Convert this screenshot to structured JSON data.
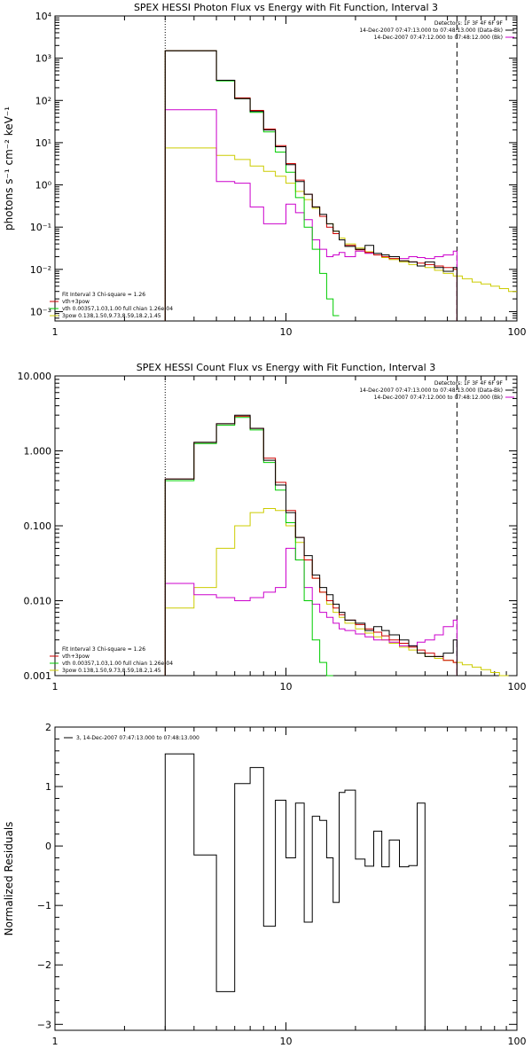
{
  "charts": [
    {
      "id": "photon",
      "type": "line",
      "title": "SPEX HESSI Photon Flux vs Energy with Fit Function, Interval 3",
      "ylabel": "photons s⁻¹ cm⁻² keV⁻¹",
      "xlabel": "",
      "xscale": "log",
      "yscale": "log",
      "xlim": [
        1,
        100
      ],
      "ylim": [
        0.0006,
        10000
      ],
      "x_ticks": [
        1,
        10,
        100
      ],
      "x_tick_labels": [
        "1",
        "10",
        "100"
      ],
      "y_ticks": [
        0.001,
        0.01,
        0.1,
        1,
        10,
        100,
        1000,
        10000
      ],
      "y_tick_labels": [
        "10⁻³",
        "10⁻²",
        "10⁻¹",
        "10⁰",
        "10¹",
        "10²",
        "10³",
        "10⁴"
      ],
      "vlines": [
        {
          "x": 3,
          "style": "dotted"
        },
        {
          "x": 55,
          "style": "dashed"
        }
      ],
      "legend_top": [
        {
          "text": "Detectors: 1F 3F 4F 6F 9F",
          "color": ""
        },
        {
          "text": "14-Dec-2007 07:47:13.000 to 07:48:13.000 (Data-Bk)",
          "color": "#000000"
        },
        {
          "text": "14-Dec-2007 07:47:12.000 to 07:48:12.000 (Bk)",
          "color": "#cc00cc"
        }
      ],
      "legend_bottom": [
        {
          "text": "Fit Interval 3   Chi-square = 1.26",
          "color": ""
        },
        {
          "text": "vth+3pow",
          "color": "#cc0000"
        },
        {
          "text": "vth 0.00357,1.03,1.00  full chian 1.26e-04",
          "color": "#00cc00"
        },
        {
          "text": "3pow 0.138,1.50,9.73,8.59,18.2,1.45",
          "color": "#cccc00"
        }
      ],
      "series": [
        {
          "name": "Data-Bk",
          "color": "#000000",
          "x": [
            3,
            4,
            5,
            6,
            7,
            8,
            9,
            10,
            11,
            12,
            13,
            14,
            15,
            16,
            17,
            18,
            20,
            22,
            24,
            26,
            28,
            31,
            34,
            37,
            40,
            44,
            48,
            53,
            55
          ],
          "y": [
            1500,
            1500,
            300,
            110,
            55,
            20,
            8,
            3,
            1.2,
            0.6,
            0.3,
            0.2,
            0.12,
            0.08,
            0.05,
            0.035,
            0.03,
            0.037,
            0.024,
            0.022,
            0.02,
            0.016,
            0.015,
            0.012,
            0.015,
            0.011,
            0.009,
            0.011,
            0.0005
          ]
        },
        {
          "name": "vth+3pow",
          "color": "#cc0000",
          "x": [
            3,
            4,
            5,
            6,
            7,
            8,
            9,
            10,
            11,
            12,
            13,
            14,
            15,
            16,
            17,
            18,
            20,
            22,
            24,
            26,
            28,
            31,
            34,
            37,
            40,
            44,
            48,
            53,
            55
          ],
          "y": [
            1500,
            1500,
            300,
            115,
            58,
            21,
            8.5,
            3.2,
            1.3,
            0.6,
            0.3,
            0.18,
            0.1,
            0.07,
            0.05,
            0.037,
            0.029,
            0.025,
            0.022,
            0.02,
            0.018,
            0.016,
            0.015,
            0.014,
            0.013,
            0.012,
            0.011,
            0.01,
            0.0005
          ]
        },
        {
          "name": "vth",
          "color": "#00cc00",
          "x": [
            3,
            4,
            5,
            6,
            7,
            8,
            9,
            10,
            11,
            12,
            13,
            14,
            15,
            16,
            17
          ],
          "y": [
            1500,
            1500,
            290,
            110,
            52,
            18,
            6,
            2,
            0.5,
            0.1,
            0.03,
            0.008,
            0.002,
            0.0008,
            0.0008
          ]
        },
        {
          "name": "3pow",
          "color": "#cccc00",
          "x": [
            3,
            4,
            5,
            6,
            7,
            8,
            9,
            10,
            11,
            12,
            13,
            14,
            15,
            16,
            17,
            18,
            20,
            22,
            24,
            26,
            28,
            31,
            34,
            37,
            40,
            44,
            48,
            53,
            58,
            64,
            70,
            77,
            84,
            92,
            100
          ],
          "y": [
            7.5,
            7.5,
            5,
            4,
            2.8,
            2.1,
            1.6,
            1.1,
            0.7,
            0.45,
            0.28,
            0.18,
            0.12,
            0.08,
            0.055,
            0.04,
            0.032,
            0.026,
            0.022,
            0.019,
            0.017,
            0.015,
            0.013,
            0.012,
            0.011,
            0.0095,
            0.008,
            0.007,
            0.006,
            0.005,
            0.0045,
            0.004,
            0.0035,
            0.003,
            0.003
          ]
        },
        {
          "name": "Bk",
          "color": "#cc00cc",
          "x": [
            3,
            4,
            5,
            6,
            7,
            8,
            9,
            10,
            11,
            12,
            13,
            14,
            15,
            16,
            17,
            18,
            20,
            22,
            24,
            26,
            28,
            31,
            34,
            37,
            40,
            44,
            48,
            53,
            55
          ],
          "y": [
            60,
            60,
            1.2,
            1.1,
            0.3,
            0.12,
            0.12,
            0.35,
            0.22,
            0.15,
            0.05,
            0.03,
            0.02,
            0.022,
            0.025,
            0.02,
            0.027,
            0.024,
            0.022,
            0.02,
            0.02,
            0.018,
            0.02,
            0.019,
            0.018,
            0.02,
            0.022,
            0.027,
            0.0005
          ]
        }
      ]
    },
    {
      "id": "count",
      "type": "line",
      "title": "SPEX HESSI Count Flux vs Energy with Fit Function, Interval 3",
      "ylabel": "",
      "xlabel": "",
      "xscale": "log",
      "yscale": "log",
      "xlim": [
        1,
        100
      ],
      "ylim": [
        0.001,
        10
      ],
      "x_ticks": [
        1,
        10,
        100
      ],
      "x_tick_labels": [
        "1",
        "10",
        "100"
      ],
      "y_ticks": [
        0.001,
        0.01,
        0.1,
        1,
        10
      ],
      "y_tick_labels": [
        "0.001",
        "0.010",
        "0.100",
        "1.000",
        "10.000"
      ],
      "vlines": [
        {
          "x": 3,
          "style": "dotted"
        },
        {
          "x": 55,
          "style": "dashed"
        }
      ],
      "legend_top": [
        {
          "text": "Detectors: 1F 3F 4F 6F 9F",
          "color": ""
        },
        {
          "text": "14-Dec-2007 07:47:13.000 to 07:48:13.000 (Data-Bk)",
          "color": "#000000"
        },
        {
          "text": "14-Dec-2007 07:47:12.000 to 07:48:12.000 (Bk)",
          "color": "#cc00cc"
        }
      ],
      "legend_bottom": [
        {
          "text": "Fit Interval 3   Chi-square = 1.26",
          "color": ""
        },
        {
          "text": "vth+3pow",
          "color": "#cc0000"
        },
        {
          "text": "vth 0.00357,1.03,1.00  full chian 1.26e-04",
          "color": "#00cc00"
        },
        {
          "text": "3pow 0.138,1.50,9.73,8.59,18.2,1.45",
          "color": "#cccc00"
        }
      ],
      "series": [
        {
          "name": "Data-Bk",
          "color": "#000000",
          "x": [
            3,
            4,
            5,
            6,
            7,
            8,
            9,
            10,
            11,
            12,
            13,
            14,
            15,
            16,
            17,
            18,
            20,
            22,
            24,
            26,
            28,
            31,
            34,
            37,
            40,
            44,
            48,
            53,
            55
          ],
          "y": [
            0.42,
            1.3,
            2.3,
            3.0,
            2.0,
            0.75,
            0.35,
            0.15,
            0.07,
            0.04,
            0.022,
            0.015,
            0.012,
            0.009,
            0.007,
            0.0055,
            0.005,
            0.004,
            0.0045,
            0.004,
            0.0035,
            0.003,
            0.0025,
            0.002,
            0.0018,
            0.0018,
            0.002,
            0.003,
            0.0009
          ]
        },
        {
          "name": "vth+3pow",
          "color": "#cc0000",
          "x": [
            3,
            4,
            5,
            6,
            7,
            8,
            9,
            10,
            11,
            12,
            13,
            14,
            15,
            16,
            17,
            18,
            20,
            22,
            24,
            26,
            28,
            31,
            34,
            37,
            40,
            44,
            48,
            53,
            55
          ],
          "y": [
            0.42,
            1.3,
            2.3,
            2.9,
            2.0,
            0.8,
            0.38,
            0.16,
            0.07,
            0.035,
            0.02,
            0.013,
            0.01,
            0.008,
            0.0065,
            0.0055,
            0.0048,
            0.0042,
            0.0038,
            0.0034,
            0.003,
            0.0027,
            0.0024,
            0.0022,
            0.002,
            0.0018,
            0.0016,
            0.0015,
            0.0009
          ]
        },
        {
          "name": "vth",
          "color": "#00cc00",
          "x": [
            3,
            4,
            5,
            6,
            7,
            8,
            9,
            10,
            11,
            12,
            13,
            14,
            15,
            16
          ],
          "y": [
            0.4,
            1.25,
            2.2,
            2.8,
            1.9,
            0.7,
            0.3,
            0.11,
            0.035,
            0.01,
            0.003,
            0.0015,
            0.0008,
            0.0008
          ]
        },
        {
          "name": "3pow",
          "color": "#cccc00",
          "x": [
            3,
            4,
            5,
            6,
            7,
            8,
            9,
            10,
            11,
            12,
            13,
            14,
            15,
            16,
            17,
            18,
            20,
            22,
            24,
            26,
            28,
            31,
            34,
            37,
            40,
            44,
            48,
            53,
            58,
            64,
            70,
            77,
            84,
            92
          ],
          "y": [
            0.008,
            0.015,
            0.05,
            0.1,
            0.15,
            0.17,
            0.16,
            0.1,
            0.06,
            0.035,
            0.02,
            0.013,
            0.009,
            0.007,
            0.006,
            0.005,
            0.0042,
            0.0037,
            0.0033,
            0.003,
            0.0027,
            0.0024,
            0.0022,
            0.002,
            0.0018,
            0.0017,
            0.0016,
            0.0015,
            0.0014,
            0.0013,
            0.0012,
            0.0011,
            0.001,
            0.001
          ]
        },
        {
          "name": "Bk",
          "color": "#cc00cc",
          "x": [
            3,
            4,
            5,
            6,
            7,
            8,
            9,
            10,
            11,
            12,
            13,
            14,
            15,
            16,
            17,
            18,
            20,
            22,
            24,
            26,
            28,
            31,
            34,
            37,
            40,
            44,
            48,
            53,
            55
          ],
          "y": [
            0.017,
            0.012,
            0.011,
            0.01,
            0.011,
            0.013,
            0.015,
            0.05,
            0.035,
            0.015,
            0.009,
            0.007,
            0.006,
            0.005,
            0.0042,
            0.004,
            0.0036,
            0.0033,
            0.003,
            0.003,
            0.0028,
            0.0025,
            0.0025,
            0.0028,
            0.003,
            0.0035,
            0.0045,
            0.0055,
            0.0009
          ]
        }
      ]
    },
    {
      "id": "resid",
      "type": "line",
      "title": "",
      "ylabel": "Normalized Residuals",
      "xlabel": "",
      "xscale": "log",
      "yscale": "linear",
      "xlim": [
        1,
        100
      ],
      "ylim": [
        -3.1,
        2
      ],
      "x_ticks": [
        1,
        10,
        100
      ],
      "x_tick_labels": [
        "1",
        "10",
        "100"
      ],
      "y_ticks": [
        -3,
        -2,
        -1,
        0,
        1,
        2
      ],
      "y_tick_labels": [
        "−3",
        "−2",
        "−1",
        "0",
        "1",
        "2"
      ],
      "vlines": [],
      "legend_top_left": [
        {
          "text": "3, 14-Dec-2007 07:47:13.000 to 07:48:13.000",
          "color": "#000000"
        }
      ],
      "series": [
        {
          "name": "3, 14-Dec-2007 07:47:13.000 to 07:48:13.000",
          "color": "#000000",
          "x": [
            3,
            4,
            5,
            6,
            7,
            8,
            9,
            10,
            11,
            12,
            13,
            14,
            15,
            16,
            17,
            18,
            20,
            22,
            24,
            26,
            28,
            31,
            34,
            37,
            40,
            44,
            48,
            53,
            55
          ],
          "y": [
            1.55,
            -0.15,
            -2.45,
            1.05,
            1.32,
            -1.35,
            0.77,
            -0.2,
            0.72,
            -1.28,
            0.5,
            0.43,
            -0.2,
            -0.95,
            0.9,
            0.94,
            -0.22,
            -0.34,
            0.25,
            -0.35,
            0.1,
            -0.35,
            -0.33,
            0.72,
            -3.1,
            -3.1,
            -3.1,
            -3.1,
            -3.1
          ]
        }
      ]
    }
  ]
}
